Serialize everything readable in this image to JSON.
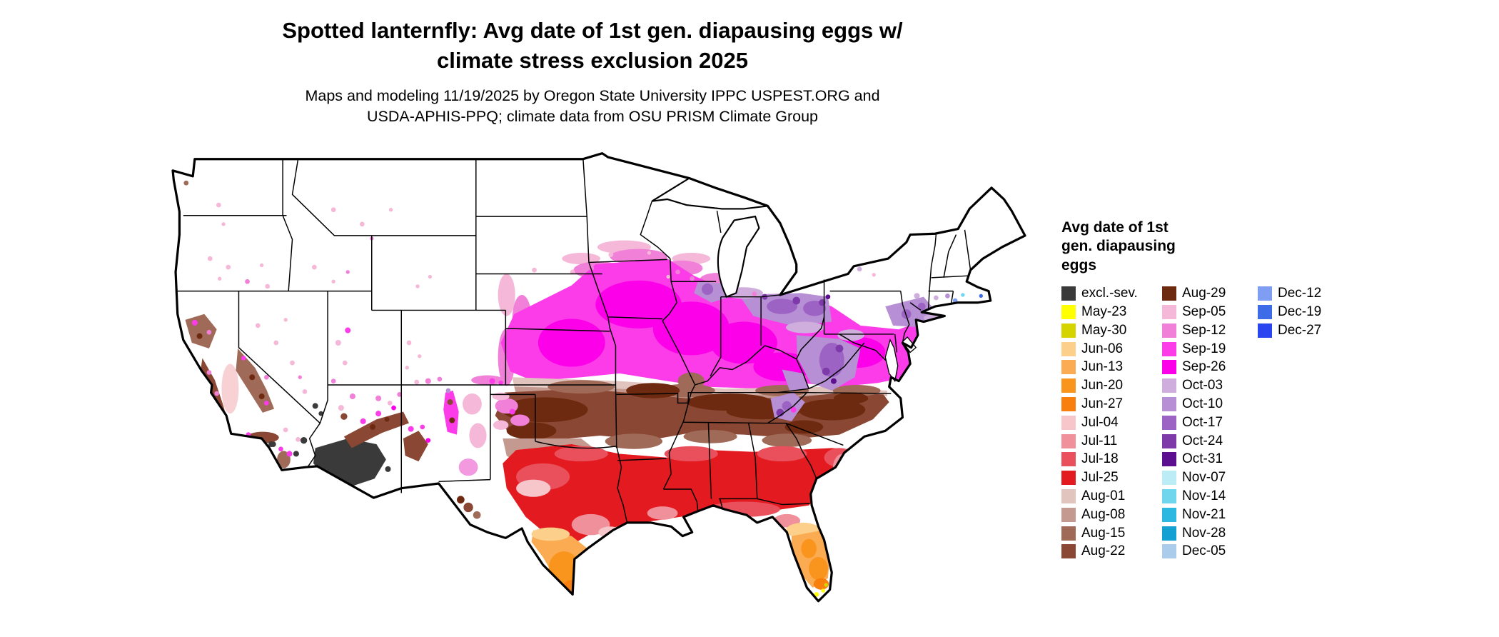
{
  "title": {
    "line1": "Spotted lanternfly: Avg date of 1st gen. diapausing eggs w/",
    "line2": "climate stress exclusion 2025"
  },
  "subtitle": {
    "line1": "Maps and modeling 11/19/2025 by Oregon State University IPPC USPEST.ORG and",
    "line2": "USDA-APHIS-PPQ; climate data from OSU PRISM Climate Group"
  },
  "legend": {
    "title_lines": [
      "Avg date of 1st",
      "gen. diapausing",
      "eggs"
    ],
    "columns": [
      [
        {
          "label": "excl.-sev.",
          "color": "#3a3a3a"
        },
        {
          "label": "May-23",
          "color": "#ffff00"
        },
        {
          "label": "May-30",
          "color": "#d6d400"
        },
        {
          "label": "Jun-06",
          "color": "#fccf8a"
        },
        {
          "label": "Jun-13",
          "color": "#fbab52"
        },
        {
          "label": "Jun-20",
          "color": "#f9941c"
        },
        {
          "label": "Jun-27",
          "color": "#f87f0e"
        },
        {
          "label": "Jul-04",
          "color": "#f6c6ca"
        },
        {
          "label": "Jul-11",
          "color": "#f0909b"
        },
        {
          "label": "Jul-18",
          "color": "#e9505c"
        },
        {
          "label": "Jul-25",
          "color": "#e31a1f"
        },
        {
          "label": "Aug-01",
          "color": "#e0c4bd"
        },
        {
          "label": "Aug-08",
          "color": "#c49a90"
        },
        {
          "label": "Aug-15",
          "color": "#a06a58"
        },
        {
          "label": "Aug-22",
          "color": "#8a4733"
        }
      ],
      [
        {
          "label": "Aug-29",
          "color": "#6e2a10"
        },
        {
          "label": "Sep-05",
          "color": "#f5b8d8"
        },
        {
          "label": "Sep-12",
          "color": "#f080d8"
        },
        {
          "label": "Sep-19",
          "color": "#fb3ce8"
        },
        {
          "label": "Sep-26",
          "color": "#fd00ea"
        },
        {
          "label": "Oct-03",
          "color": "#cfaede"
        },
        {
          "label": "Oct-10",
          "color": "#b78fd4"
        },
        {
          "label": "Oct-17",
          "color": "#9d63c4"
        },
        {
          "label": "Oct-24",
          "color": "#7d3aa8"
        },
        {
          "label": "Oct-31",
          "color": "#5c0f8e"
        },
        {
          "label": "Nov-07",
          "color": "#bcecf5"
        },
        {
          "label": "Nov-14",
          "color": "#6fd6ee"
        },
        {
          "label": "Nov-21",
          "color": "#2cb8e0"
        },
        {
          "label": "Nov-28",
          "color": "#15a0d4"
        },
        {
          "label": "Dec-05",
          "color": "#abccea"
        }
      ],
      [
        {
          "label": "Dec-12",
          "color": "#7f9df2"
        },
        {
          "label": "Dec-19",
          "color": "#3e6ce8"
        },
        {
          "label": "Dec-27",
          "color": "#2b46ee"
        }
      ]
    ]
  }
}
